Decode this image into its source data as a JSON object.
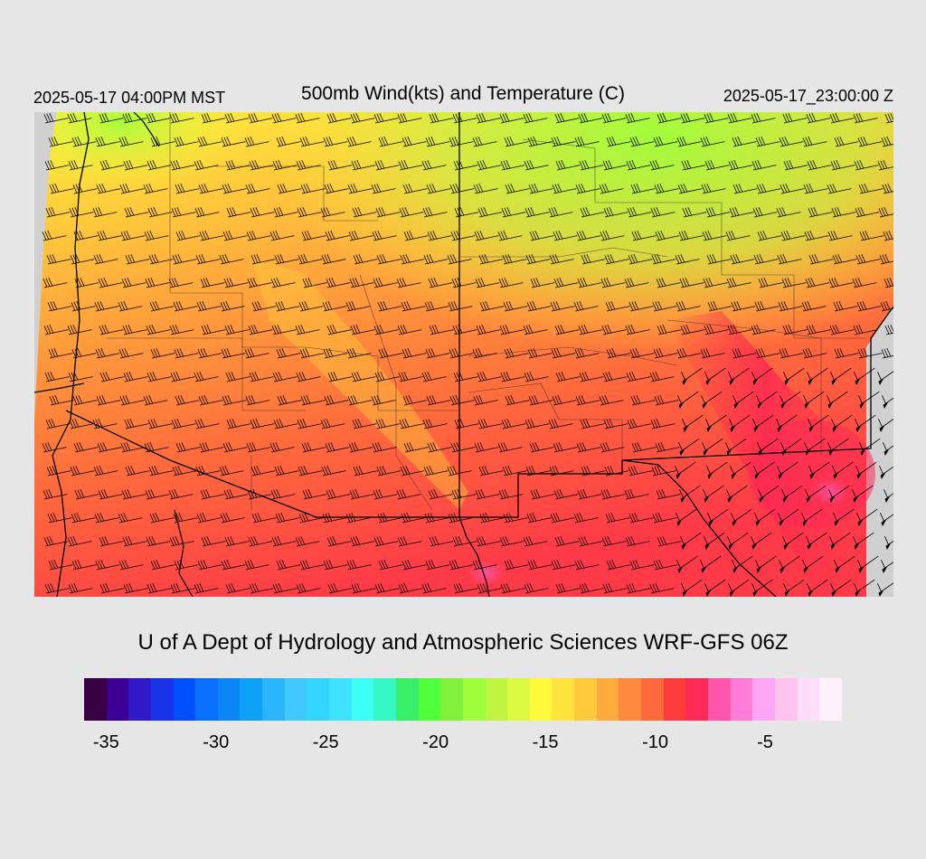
{
  "header": {
    "local_time": "2025-05-17 04:00PM MST",
    "title": "500mb Wind(kts) and Temperature (C)",
    "valid_time": "2025-05-17_23:00:00 Z"
  },
  "footer": {
    "credit": "U of A Dept of Hydrology and Atmospheric Sciences WRF-GFS 06Z"
  },
  "legend": {
    "colors": [
      "#3a0045",
      "#3d0097",
      "#3019c7",
      "#1a33e8",
      "#0050ff",
      "#0a70ff",
      "#0a86f7",
      "#0fa0f7",
      "#2bb4ff",
      "#3fc9ff",
      "#33d6ff",
      "#3de3ff",
      "#3cfff4",
      "#35f7c3",
      "#39f06a",
      "#4fff3a",
      "#81f03c",
      "#9dff3c",
      "#bff542",
      "#dbfa40",
      "#fffb3c",
      "#ffe23c",
      "#ffc93c",
      "#ffaa3c",
      "#ff8a3c",
      "#ff6a3c",
      "#ff3c3c",
      "#ff2a55",
      "#ff55aa",
      "#ff7dd6",
      "#ffa5f5",
      "#ffc3f0",
      "#ffdcf8",
      "#fff2fd"
    ],
    "tick_labels": [
      {
        "label": "-35",
        "value": -35
      },
      {
        "label": "-30",
        "value": -30
      },
      {
        "label": "-25",
        "value": -25
      },
      {
        "label": "-20",
        "value": -20
      },
      {
        "label": "-15",
        "value": -15
      },
      {
        "label": "-10",
        "value": -10
      },
      {
        "label": "-5",
        "value": -5
      }
    ],
    "min": -36,
    "max": -1.5
  }
}
